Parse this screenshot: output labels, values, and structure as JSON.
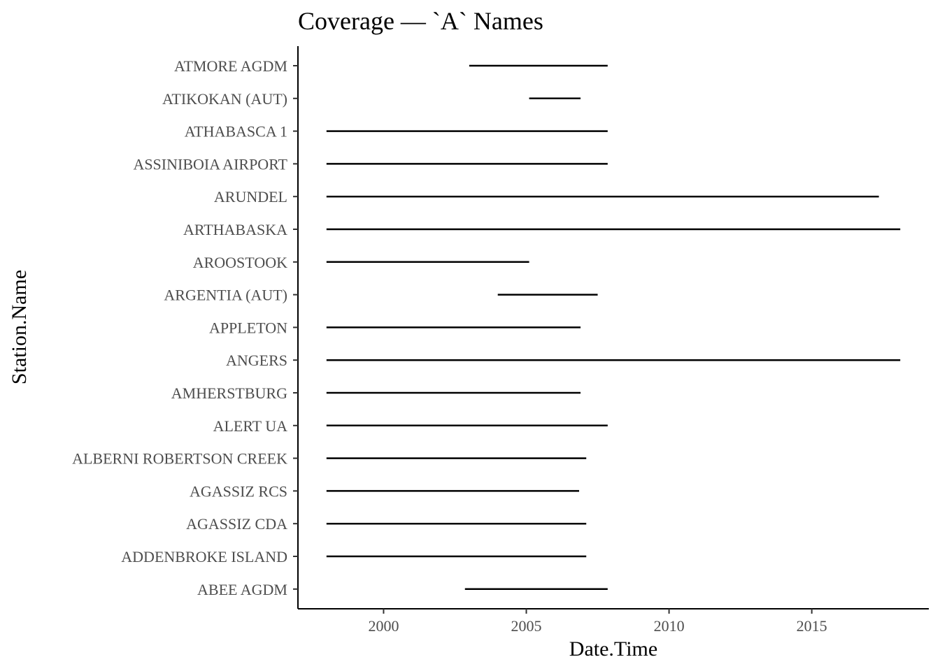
{
  "chart_data": {
    "type": "segment",
    "title": "Coverage — `A` Names",
    "xlabel": "Date.Time",
    "ylabel": "Station.Name",
    "xlim": [
      1997.0,
      2019.1
    ],
    "x_ticks": [
      2000,
      2005,
      2010,
      2015
    ],
    "grid": false,
    "legend": "none",
    "series": [
      {
        "name": "ABEE AGDM",
        "start": 2002.85,
        "end": 2007.85
      },
      {
        "name": "ADDENBROKE ISLAND",
        "start": 1998.0,
        "end": 2007.1
      },
      {
        "name": "AGASSIZ CDA",
        "start": 1998.0,
        "end": 2007.1
      },
      {
        "name": "AGASSIZ RCS",
        "start": 1998.0,
        "end": 2006.85
      },
      {
        "name": "ALBERNI ROBERTSON CREEK",
        "start": 1998.0,
        "end": 2007.1
      },
      {
        "name": "ALERT UA",
        "start": 1998.0,
        "end": 2007.85
      },
      {
        "name": "AMHERSTBURG",
        "start": 1998.0,
        "end": 2006.9
      },
      {
        "name": "ANGERS",
        "start": 1998.0,
        "end": 2018.1
      },
      {
        "name": "APPLETON",
        "start": 1998.0,
        "end": 2006.9
      },
      {
        "name": "ARGENTIA (AUT)",
        "start": 2004.0,
        "end": 2007.5
      },
      {
        "name": "AROOSTOOK",
        "start": 1998.0,
        "end": 2005.1
      },
      {
        "name": "ARTHABASKA",
        "start": 1998.0,
        "end": 2018.1
      },
      {
        "name": "ARUNDEL",
        "start": 1998.0,
        "end": 2017.35
      },
      {
        "name": "ASSINIBOIA AIRPORT",
        "start": 1998.0,
        "end": 2007.85
      },
      {
        "name": "ATHABASCA 1",
        "start": 1998.0,
        "end": 2007.85
      },
      {
        "name": "ATIKOKAN (AUT)",
        "start": 2005.1,
        "end": 2006.9
      },
      {
        "name": "ATMORE AGDM",
        "start": 2003.0,
        "end": 2007.85
      }
    ]
  }
}
